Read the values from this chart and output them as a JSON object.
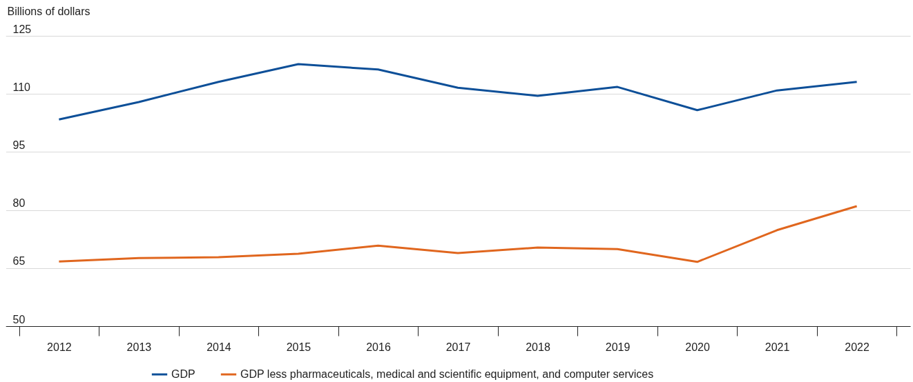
{
  "chart_data": {
    "type": "line",
    "ylabel": "Billions of dollars",
    "categories": [
      "2012",
      "2013",
      "2014",
      "2015",
      "2016",
      "2017",
      "2018",
      "2019",
      "2020",
      "2021",
      "2022"
    ],
    "series": [
      {
        "name": "GDP",
        "color": "#0d4f98",
        "values": [
          103.4,
          107.9,
          113.1,
          117.7,
          116.3,
          111.6,
          109.5,
          111.8,
          105.8,
          110.9,
          113.1
        ]
      },
      {
        "name": "GDP less pharmaceuticals, medical and scientific equipment, and computer services",
        "color": "#e0661e",
        "values": [
          66.7,
          67.6,
          67.8,
          68.7,
          70.8,
          68.9,
          70.3,
          69.9,
          66.6,
          74.8,
          81.0
        ]
      }
    ],
    "ylim": [
      50,
      125
    ],
    "yticks": [
      50,
      65,
      80,
      95,
      110,
      125
    ],
    "grid": "y",
    "legend": "bottom",
    "marker": "none",
    "line_style": "solid"
  }
}
